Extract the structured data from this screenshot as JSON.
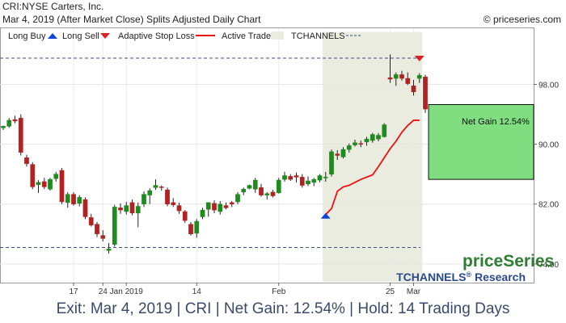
{
  "header": {
    "line1": "CRI:NYSE Carters, Inc.",
    "line2": "Mar 4, 2019 (After Market Close)  Splits Adjusted Daily Chart",
    "copyright": "© priceseries.com"
  },
  "legend": {
    "long_buy": "Long Buy",
    "long_sell": "Long Sell",
    "stop_loss": "Adaptive Stop Loss",
    "active_trade": "Active Trade",
    "tchannels": "TCHANNELS"
  },
  "brand": {
    "line1": "priceSeries",
    "line2": "TCHANNELS",
    "reg": "®",
    "line3": " Research"
  },
  "net_gain_label": "Net Gain 12.54%",
  "footer": "Exit: Mar 4, 2019 | CRI | Net Gain: 12.54% | Hold: 14 Trading Days",
  "colors": {
    "up": "#1f8a1f",
    "down": "#b22222",
    "stop": "#ee1111",
    "active_bg": "#e9ecdf",
    "gain_box": "#80dd80",
    "buy_marker": "#1144dd",
    "sell_marker": "#dd2222",
    "brand_green": "#2e7d32",
    "brand_blue": "#2a4a8a"
  },
  "chart_data": {
    "type": "candlestick",
    "y_ticks": [
      74.0,
      82.0,
      90.0,
      98.0
    ],
    "y_tick_labels": [
      "74.00",
      "82.00",
      "90.00",
      "98.00"
    ],
    "x_tick_labels": [
      {
        "label": "17",
        "index": 12
      },
      {
        "label": "24",
        "index": 17
      },
      {
        "label": "Jan 2019",
        "index": 21
      },
      {
        "label": "14",
        "index": 33
      },
      {
        "label": "Feb",
        "index": 47
      },
      {
        "label": "25",
        "index": 66
      },
      {
        "label": "Mar",
        "index": 70
      }
    ],
    "ylim": [
      71.5,
      105.5
    ],
    "channel_upper": 101.5,
    "channel_lower": 76.2,
    "active_trade_range": [
      55,
      71
    ],
    "buy": {
      "index": 55,
      "price": 80.6
    },
    "sell": {
      "index": 71,
      "price": 101.4
    },
    "gain_box": {
      "from": 95.3,
      "to": 85.3
    },
    "candles": [
      [
        92.2,
        92.5,
        91.9,
        92.4
      ],
      [
        92.4,
        93.5,
        92.2,
        93.2
      ],
      [
        93.3,
        93.8,
        92.8,
        93.1
      ],
      [
        93.5,
        94.0,
        88.5,
        88.9
      ],
      [
        88.2,
        88.6,
        87.0,
        87.4
      ],
      [
        87.3,
        87.6,
        84.0,
        84.3
      ],
      [
        84.6,
        85.2,
        83.5,
        84.9
      ],
      [
        85.0,
        85.5,
        84.0,
        84.3
      ],
      [
        84.0,
        85.5,
        83.8,
        85.3
      ],
      [
        85.4,
        86.3,
        85.0,
        86.0
      ],
      [
        86.5,
        86.8,
        82.0,
        82.3
      ],
      [
        82.2,
        83.6,
        81.5,
        83.3
      ],
      [
        83.3,
        83.6,
        81.8,
        82.0
      ],
      [
        82.1,
        83.2,
        81.7,
        82.9
      ],
      [
        82.6,
        82.9,
        80.0,
        80.3
      ],
      [
        80.2,
        80.7,
        79.0,
        79.2
      ],
      [
        79.3,
        79.6,
        77.6,
        78.0
      ],
      [
        77.8,
        78.5,
        77.0,
        77.4
      ],
      [
        75.8,
        76.8,
        75.4,
        76.0
      ],
      [
        76.6,
        81.9,
        76.3,
        81.6
      ],
      [
        81.5,
        82.1,
        80.7,
        81.2
      ],
      [
        81.0,
        82.3,
        80.6,
        81.8
      ],
      [
        82.2,
        82.6,
        80.5,
        80.8
      ],
      [
        80.8,
        82.2,
        78.9,
        81.7
      ],
      [
        82.0,
        83.7,
        81.6,
        83.3
      ],
      [
        83.2,
        84.1,
        82.0,
        83.8
      ],
      [
        84.2,
        85.3,
        83.9,
        84.5
      ],
      [
        84.3,
        84.5,
        83.8,
        84.2
      ],
      [
        83.9,
        84.2,
        81.7,
        82.0
      ],
      [
        82.2,
        82.8,
        81.6,
        81.9
      ],
      [
        81.8,
        82.2,
        80.7,
        81.1
      ],
      [
        81.0,
        81.2,
        79.5,
        79.8
      ],
      [
        79.3,
        79.6,
        77.8,
        78.0
      ],
      [
        78.1,
        80.0,
        77.5,
        79.7
      ],
      [
        80.3,
        81.5,
        80.0,
        81.2
      ],
      [
        81.3,
        82.0,
        80.3,
        82.2
      ],
      [
        82.1,
        82.5,
        80.8,
        81.2
      ],
      [
        81.0,
        82.4,
        80.6,
        82.0
      ],
      [
        81.8,
        82.2,
        81.3,
        81.5
      ],
      [
        82.2,
        82.4,
        81.6,
        82.0
      ],
      [
        82.3,
        83.6,
        82.0,
        83.3
      ],
      [
        83.6,
        84.2,
        83.2,
        84.0
      ],
      [
        84.1,
        84.6,
        84.0,
        84.5
      ],
      [
        84.0,
        85.5,
        83.5,
        85.2
      ],
      [
        84.2,
        84.7,
        83.0,
        83.2
      ],
      [
        83.2,
        83.6,
        82.6,
        83.4
      ],
      [
        83.6,
        83.9,
        82.9,
        83.1
      ],
      [
        83.5,
        85.5,
        83.4,
        85.2
      ],
      [
        85.3,
        86.3,
        85.0,
        85.8
      ],
      [
        85.7,
        86.0,
        85.1,
        85.3
      ],
      [
        85.8,
        86.2,
        84.9,
        85.6
      ],
      [
        85.6,
        86.0,
        84.2,
        84.5
      ],
      [
        84.7,
        85.7,
        84.4,
        85.1
      ],
      [
        84.9,
        85.5,
        84.4,
        85.3
      ],
      [
        85.2,
        86.0,
        84.9,
        85.8
      ],
      [
        85.6,
        86.3,
        85.0,
        85.6
      ],
      [
        86.0,
        89.3,
        85.7,
        89.0
      ],
      [
        88.7,
        89.2,
        87.9,
        88.5
      ],
      [
        88.3,
        89.6,
        88.1,
        89.3
      ],
      [
        89.3,
        90.1,
        88.9,
        89.8
      ],
      [
        89.9,
        90.6,
        89.7,
        90.2
      ],
      [
        90.1,
        90.5,
        89.6,
        90.0
      ],
      [
        90.3,
        91.0,
        89.8,
        90.7
      ],
      [
        90.5,
        91.5,
        90.2,
        91.3
      ],
      [
        90.7,
        91.5,
        90.4,
        91.2
      ],
      [
        91.0,
        92.8,
        90.9,
        92.6
      ],
      [
        98.9,
        102.0,
        98.2,
        98.7
      ],
      [
        98.8,
        99.6,
        97.8,
        99.3
      ],
      [
        99.3,
        99.8,
        98.5,
        98.8
      ],
      [
        98.8,
        99.6,
        97.9,
        98.1
      ],
      [
        97.8,
        98.6,
        96.5,
        97.0
      ],
      [
        98.8,
        99.5,
        98.2,
        99.2
      ],
      [
        99.0,
        99.3,
        94.2,
        94.7
      ]
    ],
    "stop_loss": [
      [
        55,
        80.6
      ],
      [
        56,
        81.4
      ],
      [
        57,
        83.7
      ],
      [
        58,
        84.3
      ],
      [
        59,
        84.5
      ],
      [
        60,
        84.9
      ],
      [
        61,
        85.3
      ],
      [
        62,
        85.6
      ],
      [
        63,
        85.9
      ],
      [
        64,
        87.0
      ],
      [
        65,
        88.2
      ],
      [
        66,
        89.4
      ],
      [
        67,
        90.4
      ],
      [
        68,
        91.6
      ],
      [
        69,
        92.5
      ],
      [
        70,
        93.2
      ],
      [
        71,
        93.2
      ]
    ]
  }
}
